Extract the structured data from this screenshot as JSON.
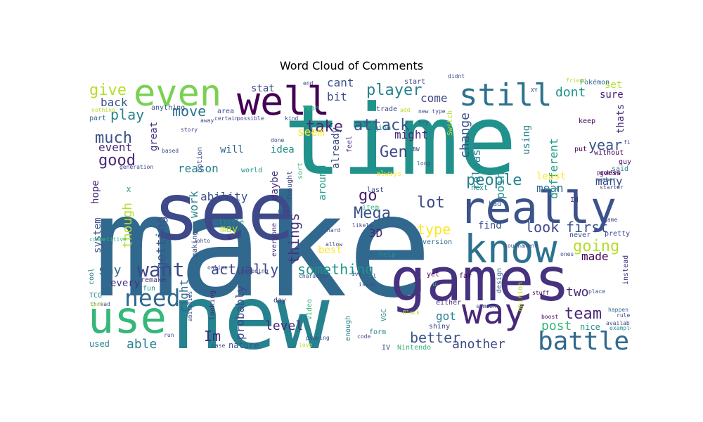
{
  "title": "Word Cloud of Comments",
  "words": [
    {
      "text": "make",
      "size": 200,
      "color": "#31688e"
    },
    {
      "text": "time",
      "size": 138,
      "color": "#21918c"
    },
    {
      "text": "new",
      "size": 125,
      "color": "#26828e"
    },
    {
      "text": "see",
      "size": 112,
      "color": "#3e4989"
    },
    {
      "text": "games",
      "size": 85,
      "color": "#46327e"
    },
    {
      "text": "really",
      "size": 62,
      "color": "#3b528b"
    },
    {
      "text": "use",
      "size": 62,
      "color": "#35b779"
    },
    {
      "text": "know",
      "size": 55,
      "color": "#2c728e"
    },
    {
      "text": "well",
      "size": 55,
      "color": "#440154"
    },
    {
      "text": "even",
      "size": 52,
      "color": "#7ad151"
    },
    {
      "text": "way",
      "size": 50,
      "color": "#482878"
    },
    {
      "text": "still",
      "size": 44,
      "color": "#2c728e"
    },
    {
      "text": "battle",
      "size": 36,
      "color": "#31688e"
    },
    {
      "text": "need",
      "size": 33,
      "color": "#31688e"
    },
    {
      "text": "want",
      "size": 28,
      "color": "#3e4989"
    },
    {
      "text": "much",
      "size": 22,
      "color": "#3b528b"
    },
    {
      "text": "go",
      "size": 22,
      "color": "#481a6c"
    },
    {
      "text": "lot",
      "size": 22,
      "color": "#3e4989"
    },
    {
      "text": "Gen",
      "size": 22,
      "color": "#3e4989"
    },
    {
      "text": "team",
      "size": 22,
      "color": "#482878"
    },
    {
      "text": "good",
      "size": 22,
      "color": "#482878"
    },
    {
      "text": "people",
      "size": 22,
      "color": "#26828e"
    },
    {
      "text": "going",
      "size": 22,
      "color": "#b5de2b"
    },
    {
      "text": "give",
      "size": 22,
      "color": "#b5de2b"
    },
    {
      "text": "player",
      "size": 22,
      "color": "#26828e"
    },
    {
      "text": "attack",
      "size": 22,
      "color": "#3b528b"
    },
    {
      "text": "take",
      "size": 22,
      "color": "#482878"
    },
    {
      "text": "Mega",
      "size": 22,
      "color": "#3b528b"
    },
    {
      "text": "play",
      "size": 20,
      "color": "#26828e"
    },
    {
      "text": "something",
      "size": 20,
      "color": "#21918c"
    },
    {
      "text": "actually",
      "size": 20,
      "color": "#3e4989"
    },
    {
      "text": "type",
      "size": 20,
      "color": "#fde725"
    },
    {
      "text": "better",
      "size": 20,
      "color": "#3b528b"
    },
    {
      "text": "Im",
      "size": 20,
      "color": "#482878"
    },
    {
      "text": "move",
      "size": 20,
      "color": "#2c728e"
    },
    {
      "text": "things",
      "size": 20,
      "color": "#46327e"
    },
    {
      "text": "look",
      "size": 20,
      "color": "#3e4989"
    },
    {
      "text": "first",
      "size": 20,
      "color": "#3b528b"
    },
    {
      "text": "year",
      "size": 20,
      "color": "#3b528b"
    },
    {
      "text": "another",
      "size": 18,
      "color": "#3e4989"
    },
    {
      "text": "though",
      "size": 18,
      "color": "#b5de2b"
    },
    {
      "text": "say",
      "size": 18,
      "color": "#31688e"
    },
    {
      "text": "dont",
      "size": 18,
      "color": "#21918c"
    },
    {
      "text": "level",
      "size": 18,
      "color": "#482878"
    },
    {
      "text": "post",
      "size": 18,
      "color": "#35b779"
    },
    {
      "text": "two",
      "size": 18,
      "color": "#482878"
    },
    {
      "text": "able",
      "size": 18,
      "color": "#26828e"
    },
    {
      "text": "change",
      "size": 18,
      "color": "#3b528b"
    },
    {
      "text": "getting",
      "size": 18,
      "color": "#3b528b"
    },
    {
      "text": "ability",
      "size": 16,
      "color": "#3b528b"
    },
    {
      "text": "work",
      "size": 16,
      "color": "#26828e"
    },
    {
      "text": "probably",
      "size": 16,
      "color": "#3e4989"
    },
    {
      "text": "right",
      "size": 16,
      "color": "#31688e"
    },
    {
      "text": "got",
      "size": 16,
      "color": "#26828e"
    },
    {
      "text": "mean",
      "size": 16,
      "color": "#31688e"
    },
    {
      "text": "many",
      "size": 16,
      "color": "#3e4989"
    },
    {
      "text": "made",
      "size": 16,
      "color": "#440154"
    },
    {
      "text": "point",
      "size": 16,
      "color": "#21918c"
    },
    {
      "text": "release",
      "size": 16,
      "color": "#26828e"
    },
    {
      "text": "different",
      "size": 16,
      "color": "#1f9e89"
    },
    {
      "text": "might",
      "size": 16,
      "color": "#482878"
    },
    {
      "text": "reason",
      "size": 16,
      "color": "#26828e"
    },
    {
      "text": "event",
      "size": 16,
      "color": "#482878"
    },
    {
      "text": "back",
      "size": 16,
      "color": "#3b528b"
    },
    {
      "text": "seem",
      "size": 16,
      "color": "#fde725"
    },
    {
      "text": "come",
      "size": 16,
      "color": "#3e4989"
    },
    {
      "text": "cant",
      "size": 16,
      "color": "#3b528b"
    },
    {
      "text": "bit",
      "size": 16,
      "color": "#3e4989"
    },
    {
      "text": "3D",
      "size": 16,
      "color": "#482878"
    },
    {
      "text": "stat",
      "size": 14,
      "color": "#3e4989"
    },
    {
      "text": "will",
      "size": 14,
      "color": "#31688e"
    },
    {
      "text": "idea",
      "size": 14,
      "color": "#21918c"
    },
    {
      "text": "maybe",
      "size": 14,
      "color": "#46327e"
    },
    {
      "text": "already",
      "size": 14,
      "color": "#3e4989"
    },
    {
      "text": "around",
      "size": 14,
      "color": "#1f9e89"
    },
    {
      "text": "find",
      "size": 14,
      "color": "#3b528b"
    },
    {
      "text": "least",
      "size": 14,
      "color": "#fde725"
    },
    {
      "text": "using",
      "size": 14,
      "color": "#26828e"
    },
    {
      "text": "thats",
      "size": 14,
      "color": "#46327e"
    },
    {
      "text": "set",
      "size": 14,
      "color": "#b5de2b"
    },
    {
      "text": "sure",
      "size": 14,
      "color": "#481a6c"
    },
    {
      "text": "great",
      "size": 14,
      "color": "#46327e"
    },
    {
      "text": "hope",
      "size": 14,
      "color": "#482878"
    },
    {
      "text": "system",
      "size": 14,
      "color": "#3b528b"
    },
    {
      "text": "best",
      "size": 14,
      "color": "#fde725"
    },
    {
      "text": "may",
      "size": 14,
      "color": "#b5de2b"
    },
    {
      "text": "every",
      "size": 14,
      "color": "#46327e"
    },
    {
      "text": "nice",
      "size": 12,
      "color": "#21918c"
    },
    {
      "text": "used",
      "size": 12,
      "color": "#26828e"
    },
    {
      "text": "nature",
      "size": 12,
      "color": "#3b528b"
    },
    {
      "text": "Pokémon",
      "size": 10,
      "color": "#31688e"
    },
    {
      "text": "keep",
      "size": 10,
      "color": "#440154"
    },
    {
      "text": "put",
      "size": 10,
      "color": "#440154"
    },
    {
      "text": "without",
      "size": 10,
      "color": "#440154"
    },
    {
      "text": "guy",
      "size": 10,
      "color": "#440154"
    },
    {
      "text": "said",
      "size": 10,
      "color": "#26828e"
    },
    {
      "text": "guess",
      "size": 10,
      "color": "#440154"
    },
    {
      "text": "pretty",
      "size": 10,
      "color": "#3e4989"
    },
    {
      "text": "never",
      "size": 10,
      "color": "#3e4989"
    },
    {
      "text": "instead",
      "size": 10,
      "color": "#46327e"
    },
    {
      "text": "Id",
      "size": 10,
      "color": "#46327e"
    },
    {
      "text": "bad",
      "size": 10,
      "color": "#31688e"
    },
    {
      "text": "next",
      "size": 10,
      "color": "#21918c"
    },
    {
      "text": "version",
      "size": 10,
      "color": "#31688e"
    },
    {
      "text": "help",
      "size": 10,
      "color": "#21918c"
    },
    {
      "text": "form",
      "size": 10,
      "color": "#26828e"
    },
    {
      "text": "last",
      "size": 10,
      "color": "#3e4989"
    },
    {
      "text": "item",
      "size": 10,
      "color": "#35b779"
    },
    {
      "text": "design",
      "size": 10,
      "color": "#31688e"
    },
    {
      "text": "far",
      "size": 10,
      "color": "#440154"
    },
    {
      "text": "yet",
      "size": 10,
      "color": "#440154"
    },
    {
      "text": "either",
      "size": 10,
      "color": "#46327e"
    },
    {
      "text": "opinion",
      "size": 10,
      "color": "#b5de2b"
    },
    {
      "text": "shiny",
      "size": 10,
      "color": "#3e4989"
    },
    {
      "text": "Nintendo",
      "size": 10,
      "color": "#35b779"
    },
    {
      "text": "VGC",
      "size": 10,
      "color": "#21918c"
    },
    {
      "text": "IV",
      "size": 10,
      "color": "#3e4989"
    },
    {
      "text": "enough",
      "size": 10,
      "color": "#26828e"
    },
    {
      "text": "video",
      "size": 10,
      "color": "#35b779"
    },
    {
      "text": "looking",
      "size": 10,
      "color": "#482878"
    },
    {
      "text": "day",
      "size": 10,
      "color": "#46327e"
    },
    {
      "text": "remake",
      "size": 10,
      "color": "#46327e"
    },
    {
      "text": "fun",
      "size": 10,
      "color": "#21918c"
    },
    {
      "text": "TCG",
      "size": 10,
      "color": "#21918c"
    },
    {
      "text": "cool",
      "size": 10,
      "color": "#26828e"
    },
    {
      "text": "making",
      "size": 10,
      "color": "#3e4989"
    },
    {
      "text": "everyone",
      "size": 10,
      "color": "#46327e"
    },
    {
      "text": "little",
      "size": 10,
      "color": "#21918c"
    },
    {
      "text": "thought",
      "size": 10,
      "color": "#3e4989"
    },
    {
      "text": "sort",
      "size": 10,
      "color": "#35b779"
    },
    {
      "text": "world",
      "size": 10,
      "color": "#21918c"
    },
    {
      "text": "option",
      "size": 10,
      "color": "#3e4989"
    },
    {
      "text": "area",
      "size": 10,
      "color": "#3e4989"
    },
    {
      "text": "Yeah",
      "size": 10,
      "color": "#35b779"
    },
    {
      "text": "trade",
      "size": 10,
      "color": "#3e4989"
    },
    {
      "text": "region",
      "size": 10,
      "color": "#26828e"
    },
    {
      "text": "Switch",
      "size": 10,
      "color": "#b5de2b"
    },
    {
      "text": "start",
      "size": 10,
      "color": "#3e4989"
    },
    {
      "text": "feel",
      "size": 10,
      "color": "#46327e"
    },
    {
      "text": "always",
      "size": 10,
      "color": "#fde725"
    },
    {
      "text": "anything",
      "size": 10,
      "color": "#3b528b"
    },
    {
      "text": "part",
      "size": 10,
      "color": "#31688e"
    },
    {
      "text": "X",
      "size": 10,
      "color": "#21918c"
    },
    {
      "text": "s",
      "size": 10,
      "color": "#482878"
    },
    {
      "text": "u",
      "size": 10,
      "color": "#35b779"
    },
    {
      "text": "tournament",
      "size": 8,
      "color": "#3e4989"
    },
    {
      "text": "stuff",
      "size": 8,
      "color": "#440154"
    },
    {
      "text": "boost",
      "size": 8,
      "color": "#440154"
    },
    {
      "text": "happen",
      "size": 8,
      "color": "#31688e"
    },
    {
      "text": "rule",
      "size": 8,
      "color": "#3e4989"
    },
    {
      "text": "example",
      "size": 8,
      "color": "#21918c"
    },
    {
      "text": "problem",
      "size": 8,
      "color": "#440154"
    },
    {
      "text": "number",
      "size": 8,
      "color": "#31688e"
    },
    {
      "text": "starter",
      "size": 8,
      "color": "#3e4989"
    },
    {
      "text": "Johto",
      "size": 8,
      "color": "#3e4989"
    },
    {
      "text": "online",
      "size": 8,
      "color": "#3e4989"
    },
    {
      "text": "breeding",
      "size": 8,
      "color": "#3e4989"
    },
    {
      "text": "character",
      "size": 8,
      "color": "#3e4989"
    },
    {
      "text": "issue",
      "size": 8,
      "color": "#3e4989"
    },
    {
      "text": "playing",
      "size": 8,
      "color": "#3e4989"
    },
    {
      "text": "code",
      "size": 8,
      "color": "#3e4989"
    },
    {
      "text": "case",
      "size": 8,
      "color": "#3e4989"
    },
    {
      "text": "love",
      "size": 8,
      "color": "#b5de2b"
    },
    {
      "text": "Black",
      "size": 8,
      "color": "#b5de2b"
    },
    {
      "text": "someone",
      "size": 8,
      "color": "#3e4989"
    },
    {
      "text": "run",
      "size": 8,
      "color": "#3e4989"
    },
    {
      "text": "abilities",
      "size": 8,
      "color": "#3e4989"
    },
    {
      "text": "competitive",
      "size": 8,
      "color": "#35b779"
    },
    {
      "text": "generation",
      "size": 8,
      "color": "#3e4989"
    },
    {
      "text": "based",
      "size": 8,
      "color": "#3e4989"
    },
    {
      "text": "story",
      "size": 8,
      "color": "#3e4989"
    },
    {
      "text": "kind",
      "size": 8,
      "color": "#3e4989"
    },
    {
      "text": "done",
      "size": 8,
      "color": "#3e4989"
    },
    {
      "text": "certain",
      "size": 8,
      "color": "#3e4989"
    },
    {
      "text": "possible",
      "size": 8,
      "color": "#3e4989"
    },
    {
      "text": "end",
      "size": 8,
      "color": "#3e4989"
    },
    {
      "text": "didnt",
      "size": 8,
      "color": "#3e4989"
    },
    {
      "text": "new type",
      "size": 8,
      "color": "#3e4989"
    },
    {
      "text": "try",
      "size": 8,
      "color": "#3e4989"
    },
    {
      "text": "long",
      "size": 8,
      "color": "#3e4989"
    },
    {
      "text": "add",
      "size": 8,
      "color": "#b5de2b"
    },
    {
      "text": "allow",
      "size": 8,
      "color": "#3e4989"
    },
    {
      "text": "Ive",
      "size": 8,
      "color": "#3e4989"
    },
    {
      "text": "likely",
      "size": 8,
      "color": "#3e4989"
    },
    {
      "text": "friend",
      "size": 8,
      "color": "#b5de2b"
    },
    {
      "text": "nothing",
      "size": 8,
      "color": "#b5de2b"
    },
    {
      "text": "thread",
      "size": 8,
      "color": "#3e4989"
    },
    {
      "text": "fact",
      "size": 8,
      "color": "#b5de2b"
    },
    {
      "text": "place",
      "size": 8,
      "color": "#3e4989"
    },
    {
      "text": "XY",
      "size": 8,
      "color": "#3e4989"
    },
    {
      "text": "ones",
      "size": 8,
      "color": "#3e4989"
    },
    {
      "text": "available",
      "size": 8,
      "color": "#3e4989"
    },
    {
      "text": "hard",
      "size": 8,
      "color": "#3e4989"
    },
    {
      "text": "away",
      "size": 8,
      "color": "#3e4989"
    },
    {
      "text": "name",
      "size": 8,
      "color": "#3e4989"
    },
    {
      "text": "fix",
      "size": 8,
      "color": "#3e4989"
    },
    {
      "text": "BW",
      "size": 8,
      "color": "#3e4989"
    },
    {
      "text": "lll",
      "size": 8,
      "color": "#3e4989"
    },
    {
      "text": "game",
      "size": 8,
      "color": "#3e4989"
    }
  ]
}
